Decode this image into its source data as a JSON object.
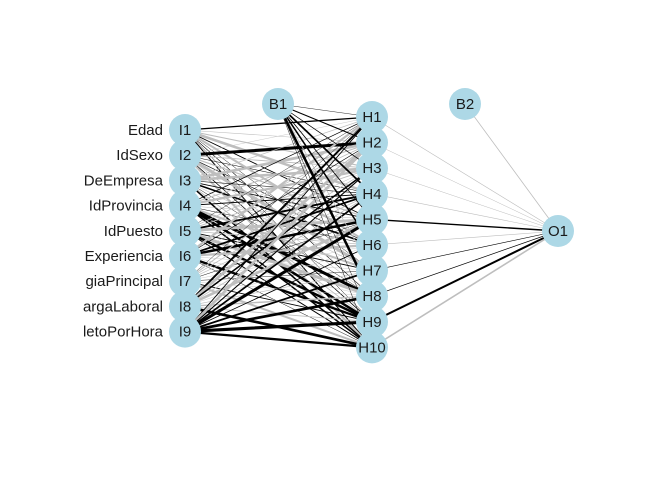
{
  "colors": {
    "node_fill": "#add8e6",
    "positive_edge": "#000000",
    "negative_edge": "#bebebe"
  },
  "layers": {
    "inputs": [
      {
        "id": "I1",
        "name": "Edad"
      },
      {
        "id": "I2",
        "name": "IdSexo"
      },
      {
        "id": "I3",
        "name": "DeEmpresa"
      },
      {
        "id": "I4",
        "name": "IdProvincia"
      },
      {
        "id": "I5",
        "name": "IdPuesto"
      },
      {
        "id": "I6",
        "name": "Experiencia"
      },
      {
        "id": "I7",
        "name": "giaPrincipal"
      },
      {
        "id": "I8",
        "name": "argaLaboral"
      },
      {
        "id": "I9",
        "name": "letoPorHora"
      }
    ],
    "hidden": [
      "H1",
      "H2",
      "H3",
      "H4",
      "H5",
      "H6",
      "H7",
      "H8",
      "H9",
      "H10"
    ],
    "output": [
      "O1"
    ],
    "bias": {
      "hidden": "B1",
      "output": "B2"
    }
  }
}
